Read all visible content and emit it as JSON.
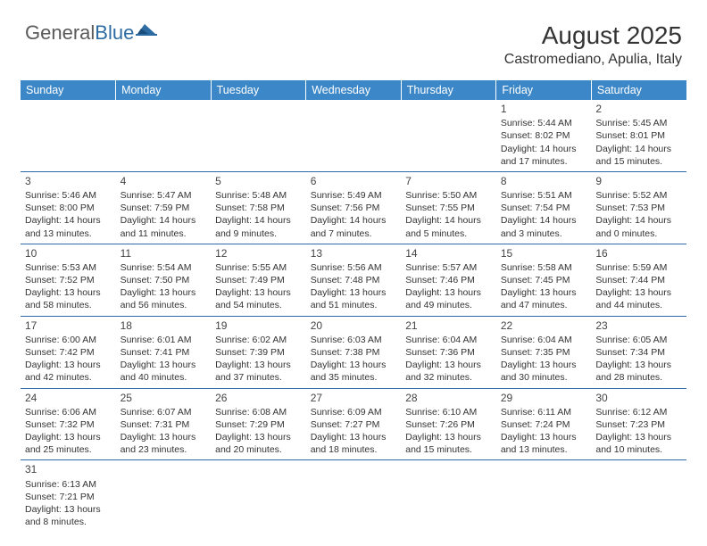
{
  "logo": {
    "text1": "General",
    "text2": "Blue"
  },
  "title": "August 2025",
  "location": "Castromediano, Apulia, Italy",
  "colors": {
    "header_bg": "#3c87c7",
    "header_fg": "#ffffff",
    "rule": "#2f6aa8",
    "text": "#333333",
    "logo_gray": "#5a5a5a",
    "logo_blue": "#2d6ca2"
  },
  "day_headers": [
    "Sunday",
    "Monday",
    "Tuesday",
    "Wednesday",
    "Thursday",
    "Friday",
    "Saturday"
  ],
  "weeks": [
    [
      null,
      null,
      null,
      null,
      null,
      {
        "n": "1",
        "sr": "5:44 AM",
        "ss": "8:02 PM",
        "dl": "14 hours and 17 minutes."
      },
      {
        "n": "2",
        "sr": "5:45 AM",
        "ss": "8:01 PM",
        "dl": "14 hours and 15 minutes."
      }
    ],
    [
      {
        "n": "3",
        "sr": "5:46 AM",
        "ss": "8:00 PM",
        "dl": "14 hours and 13 minutes."
      },
      {
        "n": "4",
        "sr": "5:47 AM",
        "ss": "7:59 PM",
        "dl": "14 hours and 11 minutes."
      },
      {
        "n": "5",
        "sr": "5:48 AM",
        "ss": "7:58 PM",
        "dl": "14 hours and 9 minutes."
      },
      {
        "n": "6",
        "sr": "5:49 AM",
        "ss": "7:56 PM",
        "dl": "14 hours and 7 minutes."
      },
      {
        "n": "7",
        "sr": "5:50 AM",
        "ss": "7:55 PM",
        "dl": "14 hours and 5 minutes."
      },
      {
        "n": "8",
        "sr": "5:51 AM",
        "ss": "7:54 PM",
        "dl": "14 hours and 3 minutes."
      },
      {
        "n": "9",
        "sr": "5:52 AM",
        "ss": "7:53 PM",
        "dl": "14 hours and 0 minutes."
      }
    ],
    [
      {
        "n": "10",
        "sr": "5:53 AM",
        "ss": "7:52 PM",
        "dl": "13 hours and 58 minutes."
      },
      {
        "n": "11",
        "sr": "5:54 AM",
        "ss": "7:50 PM",
        "dl": "13 hours and 56 minutes."
      },
      {
        "n": "12",
        "sr": "5:55 AM",
        "ss": "7:49 PM",
        "dl": "13 hours and 54 minutes."
      },
      {
        "n": "13",
        "sr": "5:56 AM",
        "ss": "7:48 PM",
        "dl": "13 hours and 51 minutes."
      },
      {
        "n": "14",
        "sr": "5:57 AM",
        "ss": "7:46 PM",
        "dl": "13 hours and 49 minutes."
      },
      {
        "n": "15",
        "sr": "5:58 AM",
        "ss": "7:45 PM",
        "dl": "13 hours and 47 minutes."
      },
      {
        "n": "16",
        "sr": "5:59 AM",
        "ss": "7:44 PM",
        "dl": "13 hours and 44 minutes."
      }
    ],
    [
      {
        "n": "17",
        "sr": "6:00 AM",
        "ss": "7:42 PM",
        "dl": "13 hours and 42 minutes."
      },
      {
        "n": "18",
        "sr": "6:01 AM",
        "ss": "7:41 PM",
        "dl": "13 hours and 40 minutes."
      },
      {
        "n": "19",
        "sr": "6:02 AM",
        "ss": "7:39 PM",
        "dl": "13 hours and 37 minutes."
      },
      {
        "n": "20",
        "sr": "6:03 AM",
        "ss": "7:38 PM",
        "dl": "13 hours and 35 minutes."
      },
      {
        "n": "21",
        "sr": "6:04 AM",
        "ss": "7:36 PM",
        "dl": "13 hours and 32 minutes."
      },
      {
        "n": "22",
        "sr": "6:04 AM",
        "ss": "7:35 PM",
        "dl": "13 hours and 30 minutes."
      },
      {
        "n": "23",
        "sr": "6:05 AM",
        "ss": "7:34 PM",
        "dl": "13 hours and 28 minutes."
      }
    ],
    [
      {
        "n": "24",
        "sr": "6:06 AM",
        "ss": "7:32 PM",
        "dl": "13 hours and 25 minutes."
      },
      {
        "n": "25",
        "sr": "6:07 AM",
        "ss": "7:31 PM",
        "dl": "13 hours and 23 minutes."
      },
      {
        "n": "26",
        "sr": "6:08 AM",
        "ss": "7:29 PM",
        "dl": "13 hours and 20 minutes."
      },
      {
        "n": "27",
        "sr": "6:09 AM",
        "ss": "7:27 PM",
        "dl": "13 hours and 18 minutes."
      },
      {
        "n": "28",
        "sr": "6:10 AM",
        "ss": "7:26 PM",
        "dl": "13 hours and 15 minutes."
      },
      {
        "n": "29",
        "sr": "6:11 AM",
        "ss": "7:24 PM",
        "dl": "13 hours and 13 minutes."
      },
      {
        "n": "30",
        "sr": "6:12 AM",
        "ss": "7:23 PM",
        "dl": "13 hours and 10 minutes."
      }
    ],
    [
      {
        "n": "31",
        "sr": "6:13 AM",
        "ss": "7:21 PM",
        "dl": "13 hours and 8 minutes."
      },
      null,
      null,
      null,
      null,
      null,
      null
    ]
  ],
  "labels": {
    "sunrise": "Sunrise:",
    "sunset": "Sunset:",
    "daylight": "Daylight:"
  }
}
